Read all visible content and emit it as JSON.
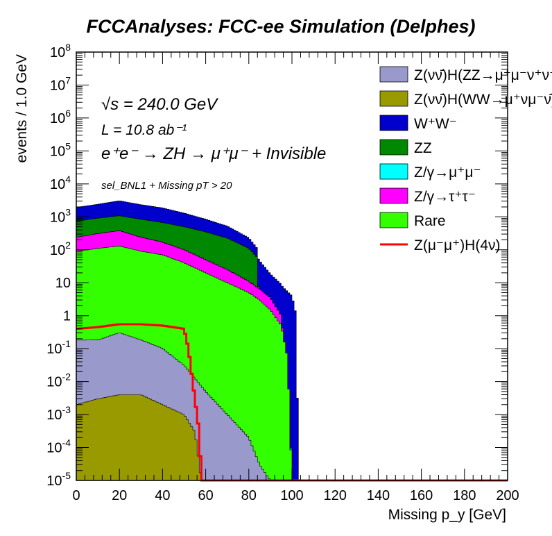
{
  "chart_data": {
    "type": "area",
    "title": "FCCAnalyses: FCC-ee Simulation (Delphes)",
    "xlabel": "Missing p_y [GeV]",
    "ylabel": "events / 1.0 GeV",
    "xlim": [
      0,
      200
    ],
    "ylim": [
      1e-05,
      100000000.0
    ],
    "log_y": true,
    "grid": false,
    "legend_position": "top-right",
    "x_ticks": [
      "0",
      "20",
      "40",
      "60",
      "80",
      "100",
      "120",
      "140",
      "160",
      "180",
      "200"
    ],
    "y_ticks": [
      "10^-5",
      "10^-4",
      "10^-3",
      "10^-2",
      "10^-1",
      "1",
      "10",
      "10^2",
      "10^3",
      "10^4",
      "10^5",
      "10^6",
      "10^7",
      "10^8"
    ],
    "annotations": {
      "sqrt_s": "√s = 240.0 GeV",
      "lumi": "L = 10.8 ab⁻¹",
      "process": "e⁺e⁻ → ZH → μ⁺μ⁻ + Invisible",
      "selection": "sel_BNL1 + Missing pT > 20"
    },
    "stack_order_bottom_to_top": [
      "ZH_WW",
      "ZH_ZZ",
      "Rare",
      "Zgamma_tautau",
      "Zgamma_mumu",
      "ZZ",
      "WW"
    ],
    "series": [
      {
        "id": "ZH_ZZ",
        "name": "Z(νν̄)H(ZZ→μ⁺μ⁻ν⁺ν⁻)",
        "color": "#9999cc",
        "kind": "stack",
        "points": [
          [
            0,
            0.18
          ],
          [
            10,
            0.18
          ],
          [
            20,
            0.3
          ],
          [
            30,
            0.18
          ],
          [
            40,
            0.1
          ],
          [
            50,
            0.03
          ],
          [
            60,
            0.005
          ],
          [
            70,
            0.001
          ],
          [
            80,
            0.0002
          ],
          [
            85,
            3e-05
          ],
          [
            90,
            1e-05
          ]
        ]
      },
      {
        "id": "ZH_WW",
        "name": "Z(νν̄)H(WW→μ⁺νμ⁻ν̄)",
        "color": "#999900",
        "kind": "stack",
        "points": [
          [
            0,
            0.002
          ],
          [
            10,
            0.003
          ],
          [
            20,
            0.004
          ],
          [
            30,
            0.004
          ],
          [
            40,
            0.002
          ],
          [
            50,
            0.001
          ],
          [
            55,
            0.0003
          ],
          [
            58,
            1e-05
          ]
        ]
      },
      {
        "id": "WW",
        "name": "W⁺W⁻",
        "color": "#0000cc",
        "kind": "stack",
        "points": [
          [
            0,
            1200
          ],
          [
            10,
            1500
          ],
          [
            20,
            2000
          ],
          [
            30,
            1500
          ],
          [
            40,
            1200
          ],
          [
            50,
            800
          ],
          [
            60,
            500
          ],
          [
            70,
            300
          ],
          [
            80,
            120
          ],
          [
            85,
            40
          ],
          [
            90,
            15
          ],
          [
            95,
            8
          ],
          [
            100,
            4
          ],
          [
            102,
            1
          ],
          [
            103,
            1e-05
          ]
        ]
      },
      {
        "id": "ZZ",
        "name": "ZZ",
        "color": "#008800",
        "kind": "stack",
        "points": [
          [
            0,
            500
          ],
          [
            10,
            600
          ],
          [
            20,
            700
          ],
          [
            30,
            600
          ],
          [
            40,
            500
          ],
          [
            50,
            400
          ],
          [
            60,
            300
          ],
          [
            70,
            200
          ],
          [
            80,
            100
          ],
          [
            84,
            50
          ],
          [
            86,
            1e-05
          ]
        ]
      },
      {
        "id": "Zgamma_mumu",
        "name": "Z/γ→μ⁺μ⁻",
        "color": "#00ffff",
        "kind": "stack",
        "points": [
          [
            0,
            1e-05
          ],
          [
            200,
            1e-05
          ]
        ]
      },
      {
        "id": "Zgamma_tautau",
        "name": "Z/γ→τ⁺τ⁻",
        "color": "#ff00ff",
        "kind": "stack",
        "points": [
          [
            0,
            150
          ],
          [
            10,
            200
          ],
          [
            20,
            250
          ],
          [
            30,
            150
          ],
          [
            40,
            100
          ],
          [
            50,
            60
          ],
          [
            60,
            30
          ],
          [
            70,
            15
          ],
          [
            80,
            6
          ],
          [
            90,
            2
          ],
          [
            95,
            0.5
          ],
          [
            98,
            1e-05
          ]
        ]
      },
      {
        "id": "Rare",
        "name": "Rare",
        "color": "#33ff00",
        "kind": "stack",
        "points": [
          [
            0,
            90
          ],
          [
            10,
            110
          ],
          [
            20,
            130
          ],
          [
            30,
            90
          ],
          [
            40,
            70
          ],
          [
            50,
            40
          ],
          [
            60,
            20
          ],
          [
            70,
            10
          ],
          [
            80,
            5
          ],
          [
            85,
            3
          ],
          [
            90,
            1.5
          ],
          [
            95,
            0.5
          ],
          [
            98,
            0.05
          ],
          [
            100,
            1e-05
          ]
        ]
      },
      {
        "id": "signal",
        "name": "Z(μ⁻μ⁺)H(4ν)",
        "color": "#ff0000",
        "kind": "line",
        "points": [
          [
            0,
            0.4
          ],
          [
            10,
            0.45
          ],
          [
            20,
            0.55
          ],
          [
            30,
            0.55
          ],
          [
            40,
            0.5
          ],
          [
            50,
            0.4
          ],
          [
            52,
            0.1
          ],
          [
            55,
            0.003
          ],
          [
            57,
            0.0003
          ],
          [
            58,
            1e-05
          ],
          [
            200,
            1e-05
          ]
        ]
      }
    ]
  }
}
